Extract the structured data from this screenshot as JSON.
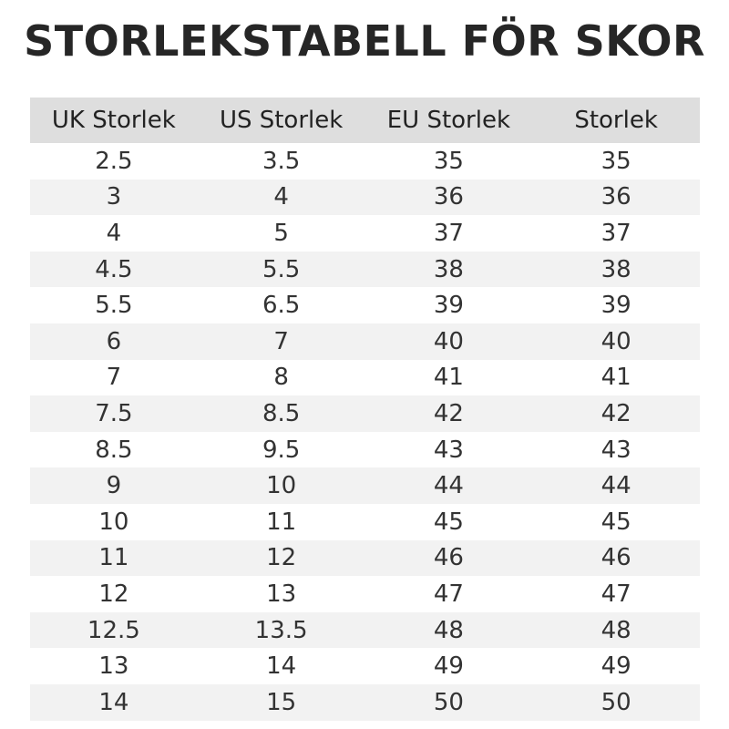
{
  "title": "STORLEKSTABELL FÖR SKOR",
  "table": {
    "headers": [
      "UK Storlek",
      "US Storlek",
      "EU Storlek",
      "Storlek"
    ],
    "rows": [
      [
        "2.5",
        "3.5",
        "35",
        "35"
      ],
      [
        "3",
        "4",
        "36",
        "36"
      ],
      [
        "4",
        "5",
        "37",
        "37"
      ],
      [
        "4.5",
        "5.5",
        "38",
        "38"
      ],
      [
        "5.5",
        "6.5",
        "39",
        "39"
      ],
      [
        "6",
        "7",
        "40",
        "40"
      ],
      [
        "7",
        "8",
        "41",
        "41"
      ],
      [
        "7.5",
        "8.5",
        "42",
        "42"
      ],
      [
        "8.5",
        "9.5",
        "43",
        "43"
      ],
      [
        "9",
        "10",
        "44",
        "44"
      ],
      [
        "10",
        "11",
        "45",
        "45"
      ],
      [
        "11",
        "12",
        "46",
        "46"
      ],
      [
        "12",
        "13",
        "47",
        "47"
      ],
      [
        "12.5",
        "13.5",
        "48",
        "48"
      ],
      [
        "13",
        "14",
        "49",
        "49"
      ],
      [
        "14",
        "15",
        "50",
        "50"
      ]
    ]
  },
  "colors": {
    "header_background": "#dedede",
    "stripe_background": "#f2f2f2",
    "text": "#222222"
  }
}
